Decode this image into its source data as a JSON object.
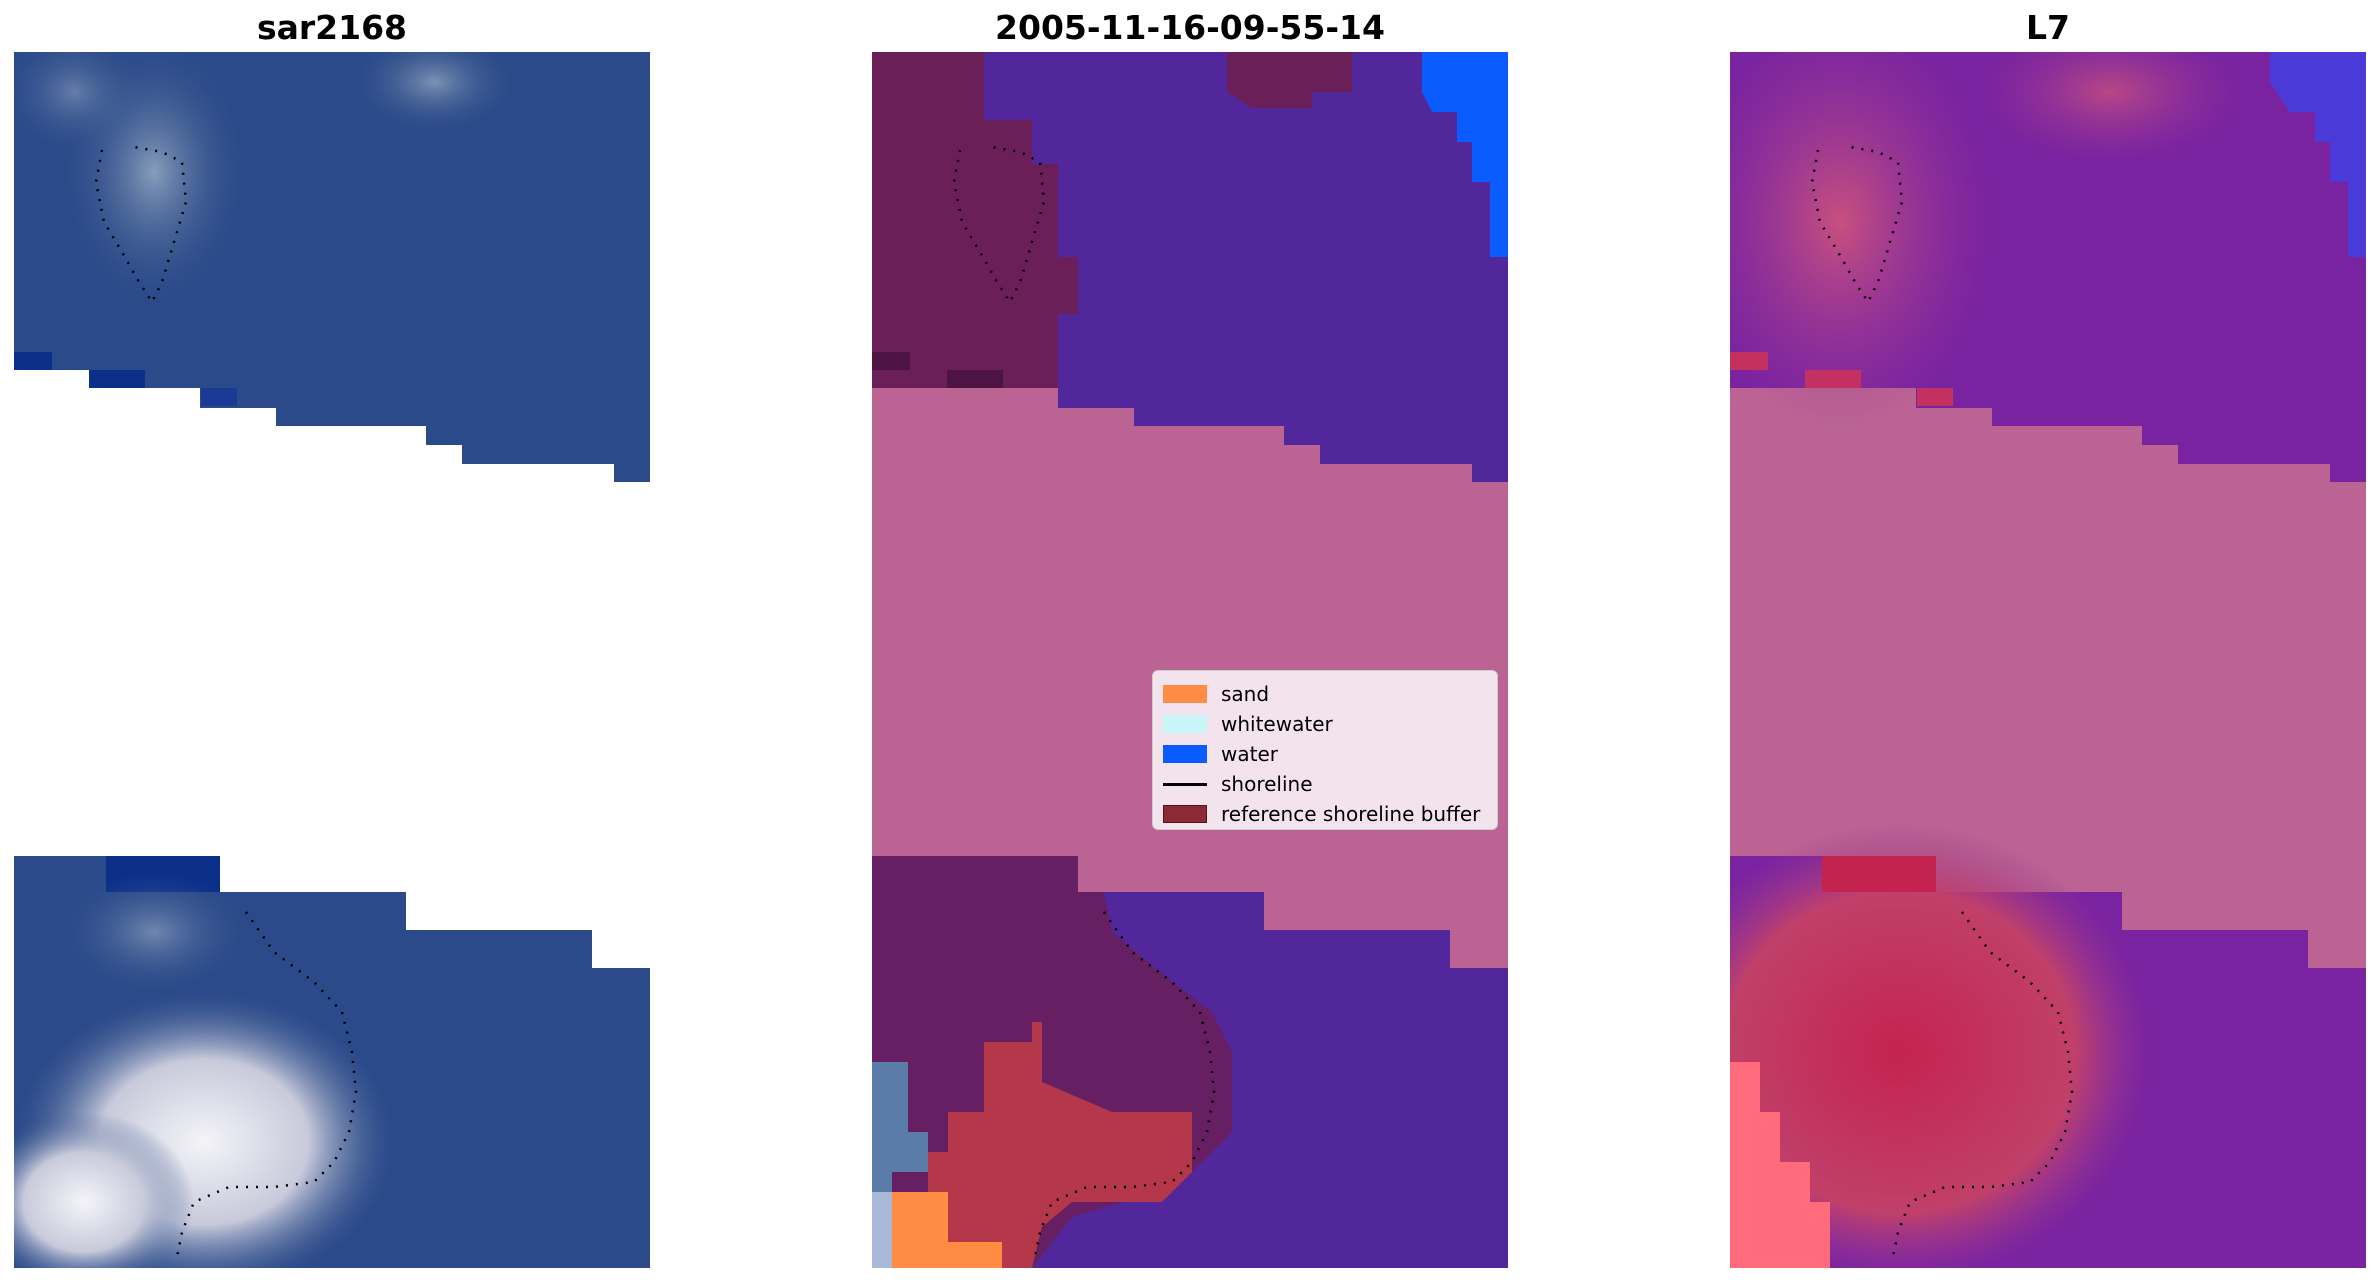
{
  "panels": [
    {
      "title": "sar2168"
    },
    {
      "title": "2005-11-16-09-55-14"
    },
    {
      "title": "L7"
    }
  ],
  "legend": {
    "items": [
      {
        "label": "sand",
        "color": "#ff8c42",
        "kind": "patch"
      },
      {
        "label": "whitewater",
        "color": "#c8f5f8",
        "kind": "patch"
      },
      {
        "label": "water",
        "color": "#0a5cff",
        "kind": "patch"
      },
      {
        "label": "shoreline",
        "color": "#000000",
        "kind": "line"
      },
      {
        "label": "reference shoreline buffer",
        "color": "#8b2a35",
        "kind": "patch"
      }
    ]
  },
  "colors": {
    "rgb_water": "#2b4a8a",
    "class_water": "#52279b",
    "nodata_overlay": "#bb6494",
    "buffer_dark": "#6a1f58",
    "sand": "#ff8c42",
    "water_blue": "#0a5cff",
    "l7_purple": "#7a23a0",
    "l7_pink": "#c4497a"
  }
}
